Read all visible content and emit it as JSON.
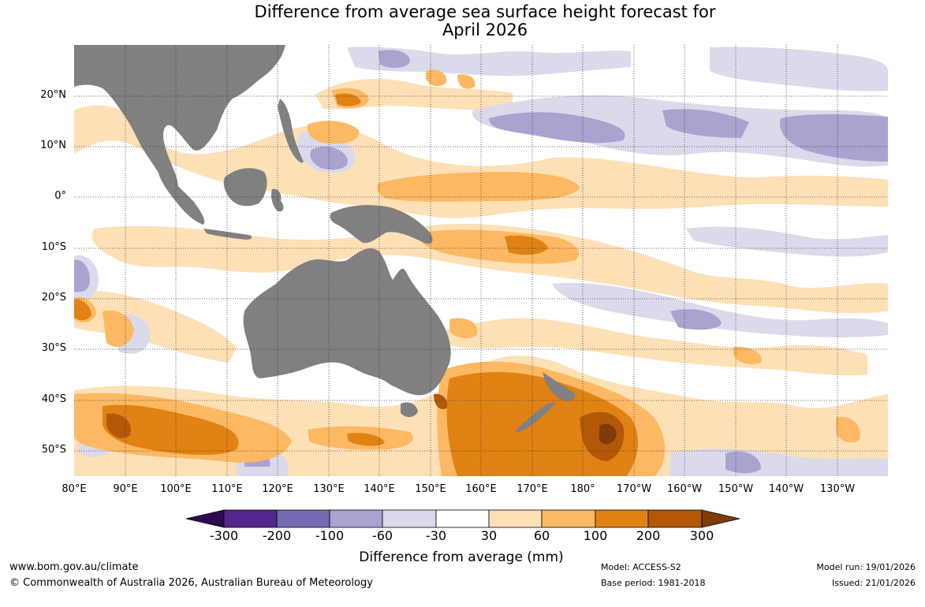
{
  "title": {
    "line1": "Difference from average sea surface height forecast for",
    "line2": "April 2026"
  },
  "map": {
    "lat_labels": [
      "20°N",
      "10°N",
      "0°",
      "10°S",
      "20°S",
      "30°S",
      "40°S",
      "50°S"
    ],
    "lon_labels": [
      "80°E",
      "90°E",
      "100°E",
      "110°E",
      "120°E",
      "130°E",
      "140°E",
      "150°E",
      "160°E",
      "170°E",
      "180°",
      "170°W",
      "160°W",
      "150°W",
      "140°W",
      "130°W"
    ],
    "land_color": "#808080",
    "grid_style": "dotted"
  },
  "colorbar": {
    "tick_labels": [
      "-300",
      "-200",
      "-100",
      "-60",
      "-30",
      "30",
      "60",
      "100",
      "200",
      "300"
    ],
    "colors": [
      "#2e0a52",
      "#54278f",
      "#756bb1",
      "#a8a3cf",
      "#dadaeb",
      "#ffffff",
      "#fee0b6",
      "#fdb863",
      "#e08214",
      "#b35806",
      "#7f3b08"
    ],
    "title": "Difference from average (mm)"
  },
  "footer": {
    "website": "www.bom.gov.au/climate",
    "copyright": "© Commonwealth of Australia 2026, Australian Bureau of Meteorology",
    "model": "Model: ACCESS-S2",
    "base_period": "Base period: 1981-2018",
    "model_run": "Model run: 19/01/2026",
    "issued": "Issued: 21/01/2026"
  }
}
